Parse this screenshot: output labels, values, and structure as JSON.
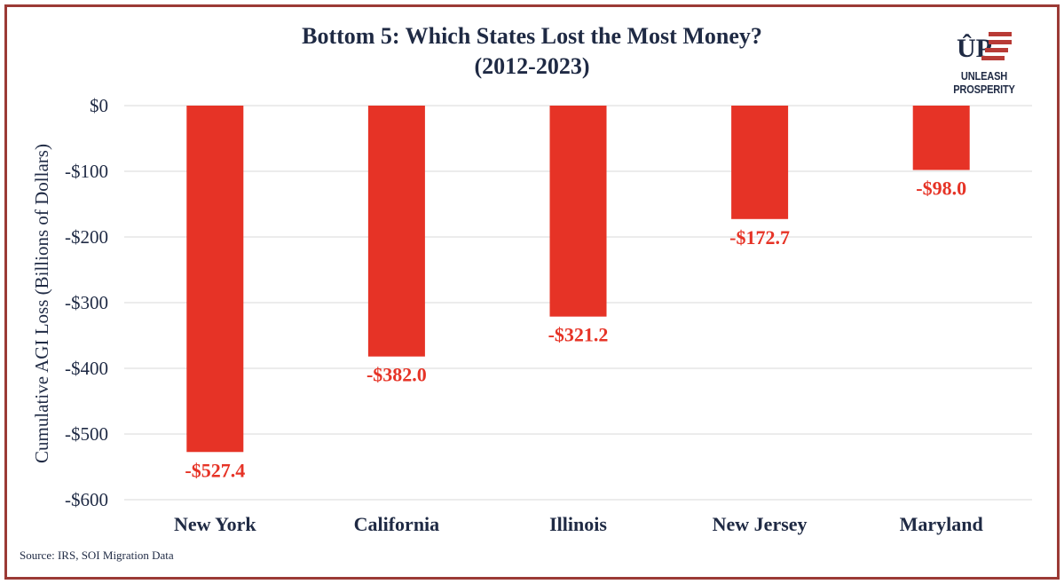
{
  "chart_data": {
    "type": "bar",
    "title_line1": "Bottom 5: Which States Lost the Most Money?",
    "title_line2": "(2012-2023)",
    "ylabel": "Cumulative AGI Loss (Billions of Dollars)",
    "xlabel": "",
    "categories": [
      "New York",
      "California",
      "Illinois",
      "New Jersey",
      "Maryland"
    ],
    "values": [
      -527.4,
      -382.0,
      -321.2,
      -172.7,
      -98.0
    ],
    "data_labels": [
      "-$527.4",
      "-$382.0",
      "-$321.2",
      "-$172.7",
      "-$98.0"
    ],
    "ylim": [
      -600,
      0
    ],
    "yticks": [
      0,
      -100,
      -200,
      -300,
      -400,
      -500,
      -600
    ],
    "ytick_labels": [
      "$0",
      "-$100",
      "-$200",
      "-$300",
      "-$400",
      "-$500",
      "-$600"
    ],
    "grid": true,
    "legend": "none"
  },
  "source": "Source: IRS, SOI Migration Data",
  "logo": {
    "text": "UNLEASH PROSPERITY",
    "icon": "up-flag-logo-icon"
  },
  "colors": {
    "bar": "#e63326",
    "label": "#e63326",
    "text": "#1f2a44",
    "grid": "#d9d9d9",
    "frame": "#9b3a35",
    "logo_red": "#b83a35"
  }
}
